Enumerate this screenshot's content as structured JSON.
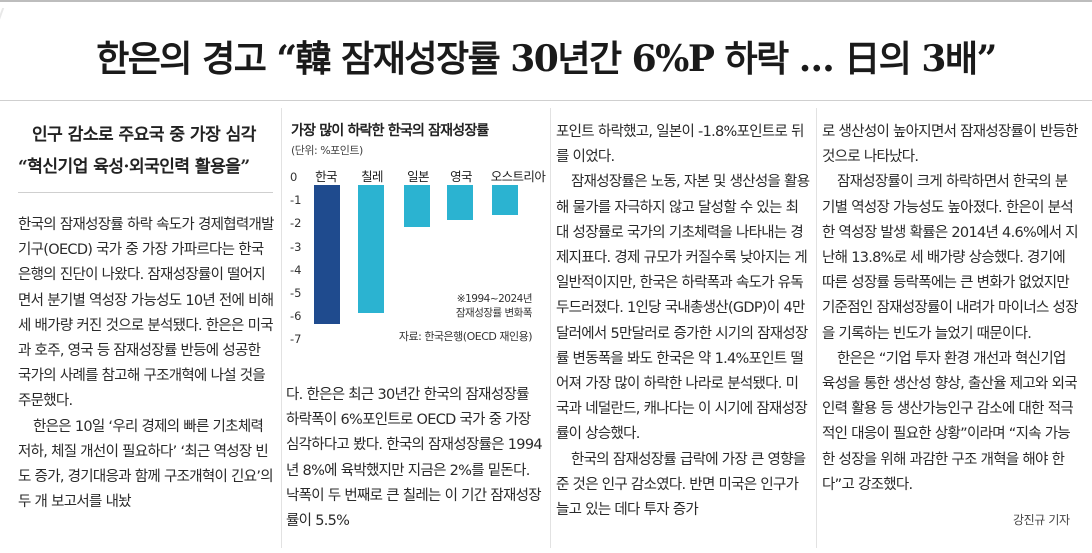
{
  "article": {
    "headline": "한은의 경고 “韓 잠재성장률 30년간 6%P 하락 … 日의 3배”",
    "subhead_1": "인구 감소로 주요국 중 가장 심각",
    "subhead_2": "“혁신기업 육성·외국인력 활용을”",
    "body": {
      "c1_p1": "한국의 잠재성장률 하락 속도가 경제협력개발기구(OECD) 국가 중 가장 가파르다는 한국은행의 진단이 나왔다. 잠재성장률이 떨어지면서 분기별 역성장 가능성도 10년 전에 비해 세 배가량 커진 것으로 분석됐다. 한은은 미국과 호주, 영국 등 잠재성장률 반등에 성공한 국가의 사례를 참고해 구조개혁에 나설 것을 주문했다.",
      "c1_p2": "한은은 10일 ‘우리 경제의 빠른 기초체력 저하, 체질 개선이 필요하다’ ‘최근 역성장 빈도 증가, 경기대응과 함께 구조개혁이 긴요’의 두 개 보고서를 내놨",
      "c2_p1": "다. 한은은 최근 30년간 한국의 잠재성장률 하락폭이 6%포인트로 OECD 국가 중 가장 심각하다고 봤다. 한국의 잠재성장률은 1994년 8%에 육박했지만 지금은 2%를 밑돈다. 낙폭이 두 번째로 큰 칠레는 이 기간 잠재성장률이 5.5%",
      "c3_p1": "포인트 하락했고, 일본이 -1.8%포인트로 뒤를 이었다.",
      "c3_p2": "잠재성장률은 노동, 자본 및 생산성을 활용해 물가를 자극하지 않고 달성할 수 있는 최대 성장률로 국가의 기초체력을 나타내는 경제지표다. 경제 규모가 커질수록 낮아지는 게 일반적이지만, 한국은 하락폭과 속도가 유독 두드러졌다. 1인당 국내총생산(GDP)이 4만달러에서 5만달러로 증가한 시기의 잠재성장률 변동폭을 봐도 한국은 약 1.4%포인트 떨어져 가장 많이 하락한 나라로 분석됐다. 미국과 네덜란드, 캐나다는 이 시기에 잠재성장률이 상승했다.",
      "c3_p3": "한국의 잠재성장률 급락에 가장 큰 영향을 준 것은 인구 감소였다. 반면 미국은 인구가 늘고 있는 데다 투자 증가",
      "c4_p1": "로 생산성이 높아지면서 잠재성장률이 반등한 것으로 나타났다.",
      "c4_p2": "잠재성장률이 크게 하락하면서 한국의 분기별 역성장 가능성도 높아졌다. 한은이 분석한 역성장 발생 확률은 2014년 4.6%에서 지난해 13.8%로 세 배가량 상승했다. 경기에 따른 성장률 등락폭에는 큰 변화가 없었지만 기준점인 잠재성장률이 내려가 마이너스 성장을 기록하는 빈도가 늘었기 때문이다.",
      "c4_p3": "한은은 “기업 투자 환경 개선과 혁신기업 육성을 통한 생산성 향상, 출산율 제고와 외국 인력 활용 등 생산가능인구 감소에 대한 적극적인 대응이 필요한 상황”이라며 “지속 가능한 성장을 위해 과감한 구조 개혁을 해야 한다”고 강조했다."
    },
    "byline": "강진규 기자"
  },
  "chart_data": {
    "type": "bar",
    "title": "가장 많이 하락한 한국의 잠재성장률",
    "unit_label": "(단위: %포인트)",
    "categories": [
      "한국",
      "칠레",
      "일본",
      "영국",
      "오스트리아"
    ],
    "values": [
      -6.0,
      -5.5,
      -1.8,
      -1.5,
      -1.3
    ],
    "y_ticks": [
      "0",
      "-1",
      "-2",
      "-3",
      "-4",
      "-5",
      "-6",
      "-7"
    ],
    "ylim": [
      -7,
      0
    ],
    "note": "※1994~2024년",
    "note_2": "잠재성장률 변화폭",
    "source": "자료: 한국은행(OECD 재인용)",
    "colors": [
      "#1f4b8e",
      "#2bb3d1",
      "#2bb3d1",
      "#2bb3d1",
      "#2bb3d1"
    ]
  }
}
